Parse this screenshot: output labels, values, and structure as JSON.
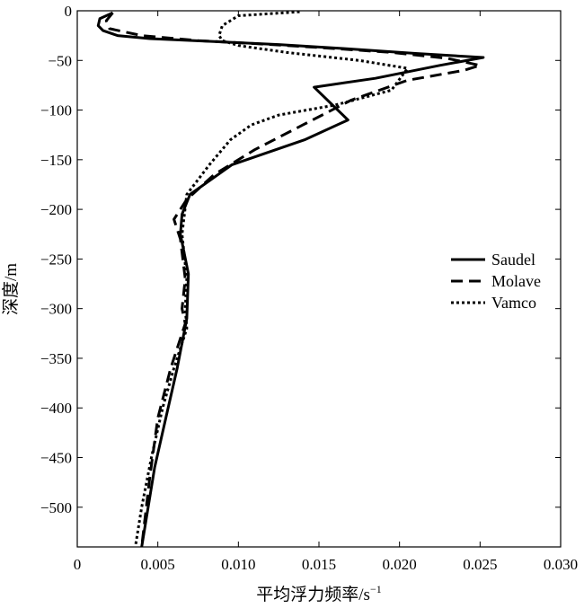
{
  "chart_data": {
    "type": "line",
    "title": "",
    "xlabel": "平均浮力频率/s",
    "xlabel_sup": "−1",
    "ylabel": "深度/m",
    "xlim": [
      0,
      0.03
    ],
    "ylim": [
      -540,
      0
    ],
    "x_ticks": [
      0,
      0.005,
      0.01,
      0.015,
      0.02,
      0.025,
      0.03
    ],
    "x_tick_labels": [
      "0",
      "0.005",
      "0.010",
      "0.015",
      "0.020",
      "0.025",
      "0.030"
    ],
    "y_ticks": [
      0,
      -50,
      -100,
      -150,
      -200,
      -250,
      -300,
      -350,
      -400,
      -450,
      -500
    ],
    "y_tick_labels": [
      "0",
      "−50",
      "−100",
      "−150",
      "−200",
      "−250",
      "−300",
      "−350",
      "−400",
      "−450",
      "−500"
    ],
    "grid": false,
    "legend_position": "right-middle",
    "series": [
      {
        "name": "Saudel",
        "style": "solid",
        "x": [
          0.0022,
          0.0014,
          0.0013,
          0.0016,
          0.0025,
          0.0045,
          0.0085,
          0.0125,
          0.0165,
          0.021,
          0.0252,
          0.0225,
          0.0185,
          0.0147,
          0.0168,
          0.0141,
          0.0096,
          0.007,
          0.0065,
          0.0064,
          0.0069,
          0.0068,
          0.0062,
          0.0055,
          0.0048,
          0.0043,
          0.004
        ],
        "y": [
          -2,
          -8,
          -15,
          -20,
          -25,
          -28,
          -31,
          -34,
          -38,
          -43,
          -47,
          -55,
          -68,
          -77,
          -110,
          -130,
          -155,
          -185,
          -205,
          -225,
          -265,
          -310,
          -360,
          -410,
          -460,
          -510,
          -540
        ]
      },
      {
        "name": "Molave",
        "style": "dashed",
        "x": [
          0.0022,
          0.0018,
          0.002,
          0.004,
          0.0075,
          0.011,
          0.015,
          0.0195,
          0.023,
          0.025,
          0.024,
          0.0205,
          0.017,
          0.014,
          0.011,
          0.0085,
          0.0068,
          0.006,
          0.0064,
          0.0067,
          0.0065,
          0.0067,
          0.0058,
          0.005,
          0.0045,
          0.004
        ],
        "y": [
          -2,
          -10,
          -18,
          -25,
          -30,
          -33,
          -37,
          -42,
          -48,
          -55,
          -60,
          -70,
          -90,
          -115,
          -140,
          -165,
          -190,
          -210,
          -230,
          -270,
          -300,
          -315,
          -360,
          -410,
          -470,
          -540
        ]
      },
      {
        "name": "Vamco",
        "style": "dotted",
        "x": [
          0.0138,
          0.01,
          0.009,
          0.0088,
          0.009,
          0.01,
          0.013,
          0.0175,
          0.0205,
          0.0195,
          0.016,
          0.0125,
          0.0108,
          0.0095,
          0.0082,
          0.0068,
          0.0065,
          0.0068,
          0.0067,
          0.0068,
          0.006,
          0.0053,
          0.0046,
          0.004,
          0.0036
        ],
        "y": [
          -1,
          -5,
          -15,
          -25,
          -30,
          -35,
          -42,
          -50,
          -58,
          -80,
          -95,
          -105,
          -115,
          -130,
          -155,
          -185,
          -225,
          -270,
          -300,
          -320,
          -360,
          -400,
          -450,
          -500,
          -540
        ]
      }
    ]
  }
}
